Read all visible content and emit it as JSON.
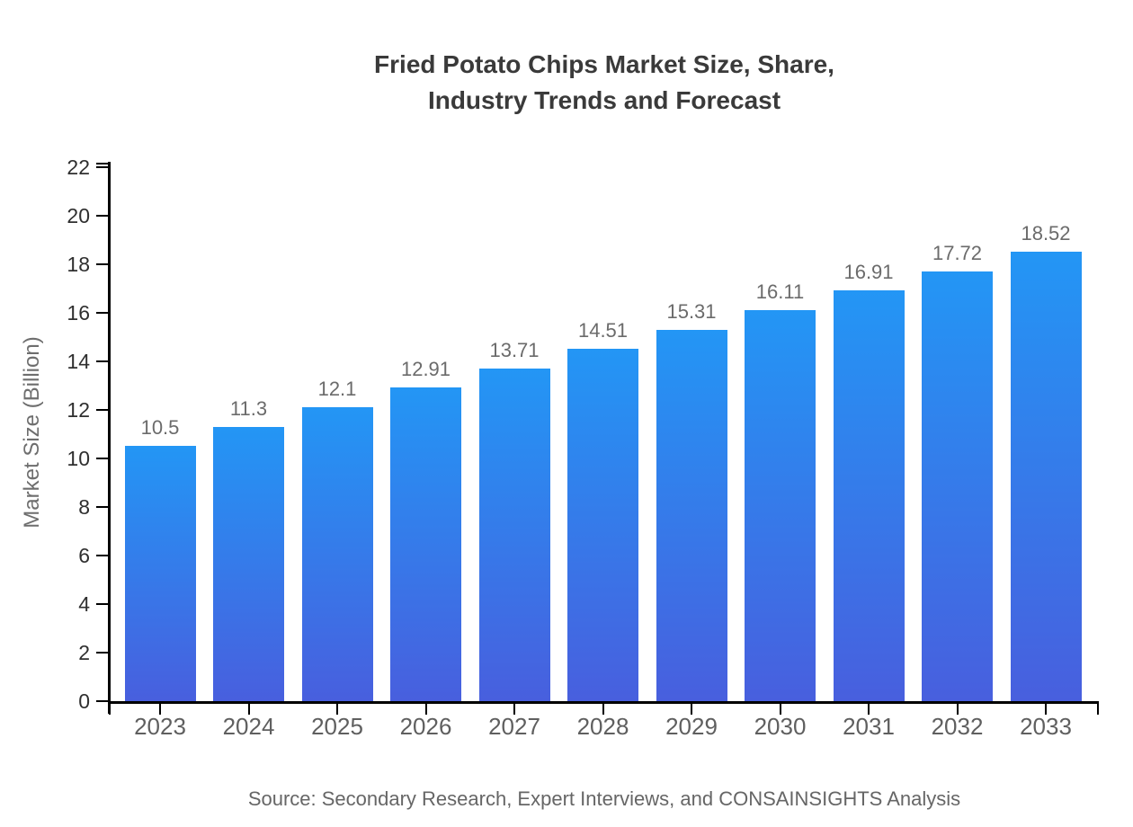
{
  "chart_data": {
    "type": "bar",
    "title_lines": [
      "Fried Potato Chips Market Size, Share,",
      "Industry Trends and Forecast"
    ],
    "categories": [
      "2023",
      "2024",
      "2025",
      "2026",
      "2027",
      "2028",
      "2029",
      "2030",
      "2031",
      "2032",
      "2033"
    ],
    "values": [
      10.5,
      11.3,
      12.1,
      12.91,
      13.71,
      14.51,
      15.31,
      16.11,
      16.91,
      17.72,
      18.52
    ],
    "value_labels": [
      "10.5",
      "11.3",
      "12.1",
      "12.91",
      "13.71",
      "14.51",
      "15.31",
      "16.11",
      "16.91",
      "17.72",
      "18.52"
    ],
    "xlabel": "",
    "ylabel": "Market Size (Billion)",
    "ylim": [
      0,
      22
    ],
    "yticks": [
      0,
      2,
      4,
      6,
      8,
      10,
      12,
      14,
      16,
      18,
      20,
      22
    ],
    "grid": false,
    "legend": "none",
    "source": "Source: Secondary Research, Expert Interviews, and CONSAINSIGHTS Analysis",
    "colors": {
      "bar_gradient_top": "#2396F5",
      "bar_gradient_bottom": "#485FDE",
      "axis": "#000000",
      "y_tick_label": "#2f2f2f",
      "x_tick_label": "#5f5f5f",
      "value_label": "#6b6b6b",
      "title": "#3a3a3a",
      "axis_title": "#6e6e6e",
      "source": "#666666"
    }
  }
}
